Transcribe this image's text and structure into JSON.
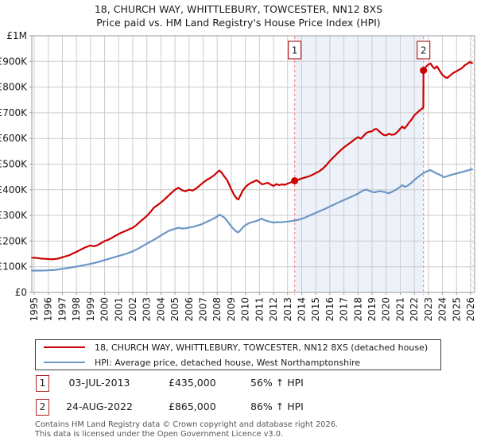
{
  "title": {
    "line1": "18, CHURCH WAY, WHITTLEBURY, TOWCESTER, NN12 8XS",
    "line2": "Price paid vs. HM Land Registry's House Price Index (HPI)"
  },
  "chart_data": {
    "type": "line",
    "grid": true,
    "legend_position": "bottom",
    "y_axis": {
      "range_gbp_k": [
        0,
        1000
      ],
      "tick_values_gbp_k": [
        0,
        100,
        200,
        300,
        400,
        500,
        600,
        700,
        800,
        900,
        1000
      ],
      "tick_labels": [
        "£0",
        "£100K",
        "£200K",
        "£300K",
        "£400K",
        "£500K",
        "£600K",
        "£700K",
        "£800K",
        "£900K",
        "£1M"
      ]
    },
    "x_axis": {
      "range_years": [
        1994.83,
        2026.3
      ],
      "tick_years": [
        1995,
        1996,
        1997,
        1998,
        1999,
        2000,
        2001,
        2002,
        2003,
        2004,
        2005,
        2006,
        2007,
        2008,
        2009,
        2010,
        2011,
        2012,
        2013,
        2014,
        2015,
        2016,
        2017,
        2018,
        2019,
        2020,
        2021,
        2022,
        2023,
        2024,
        2025,
        2026
      ]
    },
    "series": [
      {
        "name": "18, CHURCH WAY, WHITTLEBURY, TOWCESTER, NN12 8XS (detached house)",
        "color": "#cc0000",
        "x": [
          1994.83,
          1995,
          1995.25,
          1995.5,
          1995.75,
          1996,
          1996.3,
          1996.6,
          1996.8,
          1997,
          1997.25,
          1997.5,
          1997.75,
          1998,
          1998.25,
          1998.5,
          1998.75,
          1999,
          1999.25,
          1999.5,
          1999.75,
          2000,
          2000.25,
          2000.5,
          2000.75,
          2001,
          2001.25,
          2001.5,
          2001.75,
          2002,
          2002.25,
          2002.5,
          2002.75,
          2003,
          2003.25,
          2003.5,
          2003.75,
          2004,
          2004.25,
          2004.5,
          2004.75,
          2005,
          2005.25,
          2005.5,
          2005.75,
          2006,
          2006.25,
          2006.5,
          2006.75,
          2007,
          2007.25,
          2007.5,
          2007.75,
          2008,
          2008.15,
          2008.3,
          2008.5,
          2008.7,
          2008.85,
          2009,
          2009.2,
          2009.4,
          2009.5,
          2009.65,
          2009.8,
          2010,
          2010.2,
          2010.4,
          2010.6,
          2010.8,
          2011,
          2011.2,
          2011.4,
          2011.6,
          2011.8,
          2012,
          2012.2,
          2012.4,
          2012.6,
          2012.8,
          2013,
          2013.25,
          2013.5,
          2013.75,
          2014,
          2014.25,
          2014.5,
          2014.75,
          2015,
          2015.25,
          2015.5,
          2015.75,
          2016,
          2016.25,
          2016.5,
          2016.75,
          2017,
          2017.25,
          2017.5,
          2017.75,
          2018,
          2018.2,
          2018.4,
          2018.6,
          2018.8,
          2019,
          2019.15,
          2019.3,
          2019.5,
          2019.7,
          2019.85,
          2020,
          2020.2,
          2020.4,
          2020.6,
          2020.8,
          2021,
          2021.15,
          2021.3,
          2021.45,
          2021.6,
          2021.8,
          2022,
          2022.2,
          2022.4,
          2022.64,
          2022.65,
          2022.8,
          2023,
          2023.15,
          2023.3,
          2023.45,
          2023.6,
          2023.75,
          2023.9,
          2024.05,
          2024.2,
          2024.35,
          2024.5,
          2024.65,
          2024.8,
          2025,
          2025.2,
          2025.4,
          2025.6,
          2025.8,
          2025.95,
          2026.1
        ],
        "values_gbp_k": [
          135,
          135,
          134,
          132,
          131,
          130,
          129,
          131,
          133,
          137,
          141,
          145,
          152,
          158,
          165,
          172,
          178,
          183,
          180,
          184,
          192,
          200,
          205,
          212,
          220,
          228,
          234,
          240,
          246,
          252,
          262,
          275,
          286,
          298,
          313,
          330,
          340,
          350,
          362,
          375,
          388,
          400,
          408,
          398,
          394,
          400,
          397,
          405,
          416,
          428,
          438,
          446,
          455,
          468,
          475,
          468,
          452,
          438,
          420,
          402,
          380,
          365,
          362,
          378,
          395,
          410,
          420,
          427,
          432,
          437,
          429,
          421,
          424,
          427,
          420,
          415,
          422,
          418,
          421,
          419,
          424,
          429,
          435,
          439,
          444,
          448,
          452,
          458,
          465,
          472,
          482,
          496,
          512,
          526,
          540,
          553,
          565,
          575,
          585,
          596,
          605,
          599,
          610,
          622,
          626,
          628,
          635,
          637,
          628,
          618,
          613,
          612,
          618,
          614,
          616,
          625,
          638,
          646,
          639,
          648,
          660,
          673,
          690,
          700,
          710,
          720,
          865,
          878,
          888,
          892,
          880,
          872,
          881,
          868,
          855,
          845,
          838,
          836,
          843,
          850,
          856,
          862,
          868,
          875,
          886,
          892,
          898,
          893
        ]
      },
      {
        "name": "HPI: Average price, detached house, West Northamptonshire",
        "color": "#6b96c8",
        "x": [
          1994.83,
          1995,
          1995.5,
          1996,
          1996.5,
          1997,
          1997.5,
          1998,
          1998.5,
          1999,
          1999.5,
          2000,
          2000.5,
          2001,
          2001.5,
          2002,
          2002.5,
          2003,
          2003.5,
          2004,
          2004.25,
          2004.5,
          2004.75,
          2005,
          2005.25,
          2005.5,
          2005.75,
          2006,
          2006.25,
          2006.5,
          2006.75,
          2007,
          2007.25,
          2007.5,
          2007.75,
          2008,
          2008.15,
          2008.3,
          2008.5,
          2008.7,
          2008.85,
          2009,
          2009.2,
          2009.4,
          2009.5,
          2009.65,
          2009.8,
          2010,
          2010.25,
          2010.5,
          2010.75,
          2011,
          2011.15,
          2011.3,
          2011.5,
          2011.75,
          2012,
          2012.25,
          2012.5,
          2012.75,
          2013,
          2013.25,
          2013.5,
          2013.75,
          2014,
          2014.25,
          2014.5,
          2014.75,
          2015,
          2015.25,
          2015.5,
          2015.75,
          2016,
          2016.25,
          2016.5,
          2016.75,
          2017,
          2017.25,
          2017.5,
          2017.75,
          2018,
          2018.2,
          2018.4,
          2018.6,
          2018.8,
          2019,
          2019.2,
          2019.4,
          2019.6,
          2019.8,
          2020,
          2020.15,
          2020.35,
          2020.55,
          2020.75,
          2021,
          2021.15,
          2021.3,
          2021.5,
          2021.75,
          2022,
          2022.25,
          2022.5,
          2022.75,
          2023,
          2023.1,
          2023.3,
          2023.5,
          2023.7,
          2023.9,
          2024.1,
          2024.3,
          2024.5,
          2024.7,
          2024.9,
          2025.1,
          2025.3,
          2025.5,
          2025.7,
          2025.9,
          2026.1
        ],
        "values_gbp_k": [
          85,
          85,
          85,
          86,
          88,
          92,
          96,
          101,
          106,
          111,
          118,
          126,
          134,
          142,
          150,
          160,
          174,
          190,
          205,
          222,
          230,
          238,
          244,
          248,
          252,
          249,
          250,
          253,
          255,
          259,
          263,
          268,
          275,
          281,
          288,
          296,
          303,
          299,
          292,
          280,
          268,
          257,
          245,
          236,
          234,
          242,
          252,
          262,
          270,
          274,
          278,
          283,
          288,
          283,
          279,
          276,
          272,
          274,
          273,
          275,
          276,
          278,
          280,
          283,
          287,
          292,
          298,
          304,
          310,
          316,
          322,
          328,
          335,
          341,
          348,
          354,
          360,
          366,
          372,
          378,
          385,
          392,
          398,
          401,
          396,
          392,
          390,
          393,
          395,
          392,
          390,
          386,
          390,
          396,
          402,
          412,
          418,
          411,
          415,
          425,
          438,
          449,
          459,
          468,
          474,
          477,
          472,
          466,
          461,
          456,
          449,
          452,
          456,
          459,
          462,
          465,
          468,
          471,
          474,
          477,
          480
        ]
      }
    ],
    "markers": [
      {
        "label": "1",
        "x_year": 2013.5,
        "value_gbp_k": 435
      },
      {
        "label": "2",
        "x_year": 2022.65,
        "value_gbp_k": 865
      }
    ],
    "shaded_region_years": [
      2013.5,
      2022.65
    ],
    "hatched_future_start_year": 2025.93,
    "colors": {
      "shade": "#edf1f9",
      "grid": "#cccccc",
      "border": "#9a9a9a",
      "marker_dash": "#f28c8c",
      "marker_box_border": "#b22222",
      "hatch": "#c0c4cc",
      "tick_text": "#1a1a1a"
    }
  },
  "annotations": [
    {
      "index": "1",
      "date": "03-JUL-2013",
      "price": "£435,000",
      "hpi_change": "56% ↑ HPI"
    },
    {
      "index": "2",
      "date": "24-AUG-2022",
      "price": "£865,000",
      "hpi_change": "86% ↑ HPI"
    }
  ],
  "footer": {
    "line1": "Contains HM Land Registry data © Crown copyright and database right 2026.",
    "line2": "This data is licensed under the Open Government Licence v3.0."
  }
}
